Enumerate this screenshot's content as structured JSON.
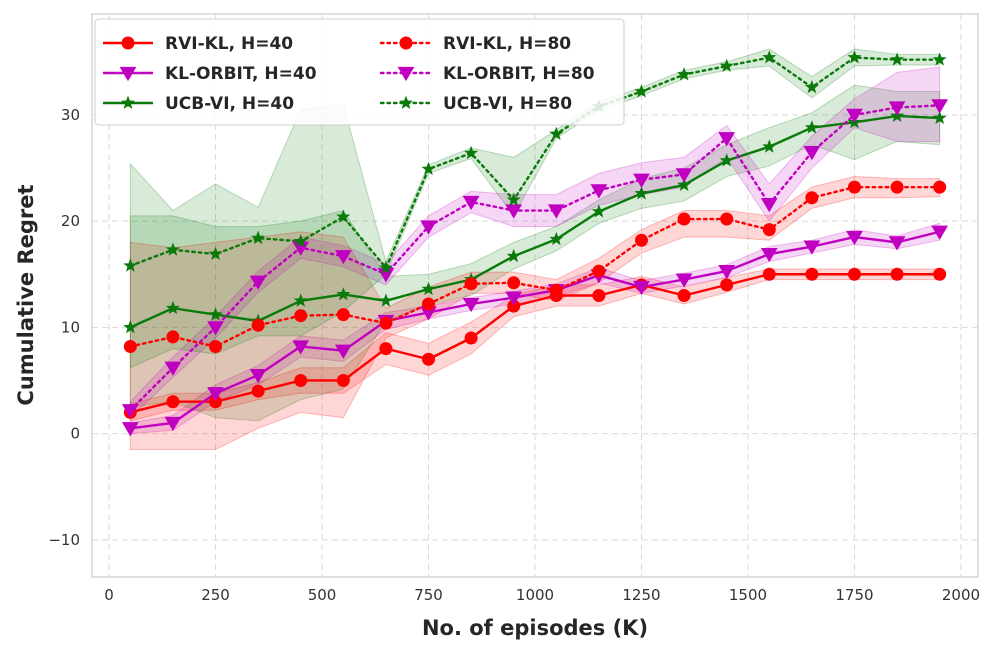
{
  "chart_data": {
    "type": "line",
    "title": "",
    "xlabel": "No. of episodes (K)",
    "ylabel": "Cumulative Regret",
    "xlim": [
      -40,
      2040
    ],
    "ylim": [
      -13.5,
      39.5
    ],
    "xticks": [
      0,
      250,
      500,
      750,
      1000,
      1250,
      1500,
      1750,
      2000
    ],
    "xtick_labels": [
      "0",
      "250",
      "500",
      "750",
      "1000",
      "1250",
      "1500",
      "1750",
      "2000"
    ],
    "yticks": [
      -10,
      0,
      10,
      20,
      30
    ],
    "ytick_labels": [
      "−10",
      "0",
      "10",
      "20",
      "30"
    ],
    "grid": true,
    "legend_position": "top-left",
    "x": [
      50,
      150,
      250,
      350,
      450,
      550,
      650,
      750,
      850,
      950,
      1050,
      1150,
      1250,
      1350,
      1450,
      1550,
      1650,
      1750,
      1850,
      1950
    ],
    "series": [
      {
        "name": "RVI-KL, H=40",
        "color": "#ff0000",
        "linestyle": "solid",
        "marker": "circle",
        "values": [
          2,
          3,
          3,
          4,
          5,
          5,
          8,
          7,
          9,
          12,
          13,
          13,
          14,
          13,
          14,
          15,
          15,
          15,
          15,
          15
        ],
        "band_low": [
          1.2,
          2.2,
          2.2,
          3.2,
          3.8,
          3.8,
          6.5,
          5.5,
          7.5,
          11,
          12,
          12,
          13.2,
          12.2,
          13.3,
          14.5,
          14.5,
          14.5,
          14.5,
          14.5
        ],
        "band_high": [
          2.8,
          3.8,
          3.8,
          4.8,
          6.2,
          6.2,
          9.5,
          8.5,
          10.5,
          13,
          14,
          14,
          14.8,
          13.8,
          14.7,
          15.5,
          15.5,
          15.5,
          15.5,
          15.5
        ]
      },
      {
        "name": "KL-ORBIT, H=40",
        "color": "#c000c0",
        "linestyle": "solid",
        "marker": "triangle-down",
        "values": [
          0.5,
          1,
          3.8,
          5.5,
          8.2,
          7.8,
          10.6,
          11.4,
          12.2,
          12.8,
          13.5,
          14.9,
          13.8,
          14.5,
          15.3,
          16.9,
          17.6,
          18.5,
          18,
          19
        ],
        "band_low": [
          0,
          0.3,
          3,
          4.6,
          7.2,
          6.8,
          9.8,
          10.8,
          11.6,
          12.2,
          12.9,
          14.2,
          13.2,
          13.9,
          14.7,
          16.2,
          17,
          17.8,
          17.4,
          18.2
        ],
        "band_high": [
          1,
          1.7,
          4.6,
          6.4,
          9.2,
          8.8,
          11.4,
          12,
          12.8,
          13.4,
          14.1,
          15.6,
          14.4,
          15.1,
          15.9,
          17.6,
          18.2,
          19.2,
          18.6,
          19.8
        ]
      },
      {
        "name": "UCB-VI, H=40",
        "color": "#0a7a0a",
        "linestyle": "solid",
        "marker": "star",
        "values": [
          10,
          11.8,
          11.2,
          10.6,
          12.5,
          13.1,
          12.5,
          13.6,
          14.5,
          16.7,
          18.3,
          20.9,
          22.6,
          23.4,
          25.7,
          27,
          28.8,
          29.3,
          29.9,
          29.7
        ],
        "band_low": [
          2.5,
          3,
          1.5,
          1.2,
          3.2,
          4.2,
          10.6,
          12.1,
          13,
          15.5,
          17.2,
          19.8,
          21.2,
          21.9,
          24.2,
          25.2,
          27.2,
          25.8,
          27.5,
          27.2
        ],
        "band_high": [
          20.5,
          20.5,
          19.5,
          19.5,
          20,
          21,
          14.8,
          15,
          16,
          18,
          19.5,
          22,
          24,
          25,
          27.2,
          28.8,
          30.2,
          32.8,
          32.2,
          32.2
        ]
      },
      {
        "name": "RVI-KL, H=80",
        "color": "#ff0000",
        "linestyle": "dotted",
        "marker": "circle",
        "values": [
          8.2,
          9.1,
          8.2,
          10.2,
          11.1,
          11.2,
          10.4,
          12.2,
          14.1,
          14.2,
          13.5,
          15.3,
          18.2,
          20.2,
          20.2,
          19.2,
          22.2,
          23.2,
          23.2,
          23.2
        ],
        "band_low": [
          -1.5,
          -1.5,
          -1.5,
          0.5,
          2,
          1.5,
          9,
          10.8,
          13.2,
          13.2,
          12.5,
          14.2,
          17,
          18.5,
          18.5,
          18.2,
          21.2,
          22.2,
          22.2,
          22.3
        ],
        "band_high": [
          18,
          17.5,
          18,
          18.5,
          19,
          18.5,
          11.8,
          13.8,
          15.2,
          15.2,
          14.5,
          16.5,
          19.2,
          21,
          21,
          20.5,
          23.2,
          24.2,
          24,
          24
        ]
      },
      {
        "name": "KL-ORBIT, H=80",
        "color": "#c000c0",
        "linestyle": "dotted",
        "marker": "triangle-down",
        "values": [
          2.2,
          6.2,
          10,
          14.3,
          17.5,
          16.7,
          15,
          19.5,
          21.8,
          21,
          21,
          22.9,
          23.9,
          24.4,
          27.8,
          21.6,
          26.5,
          30,
          30.7,
          30.9
        ],
        "band_low": [
          1.5,
          5.3,
          9,
          13.3,
          16.5,
          15.7,
          14,
          18.5,
          20.8,
          19.5,
          19.5,
          21.5,
          22.5,
          23.2,
          26,
          20,
          25,
          28.8,
          27.5,
          27.5
        ],
        "band_high": [
          3,
          7.2,
          11,
          15.3,
          18.5,
          17.7,
          16,
          20.5,
          22.8,
          22.5,
          22.5,
          24.5,
          25.5,
          26,
          29,
          23.5,
          28,
          31.5,
          34,
          34.5
        ]
      },
      {
        "name": "UCB-VI, H=80",
        "color": "#0a7a0a",
        "linestyle": "dotted",
        "marker": "star",
        "values": [
          15.8,
          17.3,
          16.9,
          18.4,
          18.1,
          20.4,
          15.6,
          24.9,
          26.4,
          22,
          28.2,
          30.8,
          32.2,
          33.8,
          34.6,
          35.4,
          32.6,
          35.4,
          35.2,
          35.2
        ],
        "band_low": [
          6.2,
          8,
          7.5,
          9.2,
          9.2,
          11.5,
          15,
          24.5,
          25.9,
          20.5,
          27.8,
          30.4,
          31.8,
          33.4,
          34.2,
          34.6,
          31.6,
          34.6,
          34.7,
          34.7
        ],
        "band_high": [
          25.4,
          21,
          23.5,
          21.3,
          30.5,
          31,
          16.2,
          25.3,
          26.9,
          26,
          28.6,
          31.2,
          32.6,
          34.2,
          35,
          36.2,
          33.6,
          36.2,
          35.7,
          35.7
        ]
      }
    ]
  }
}
